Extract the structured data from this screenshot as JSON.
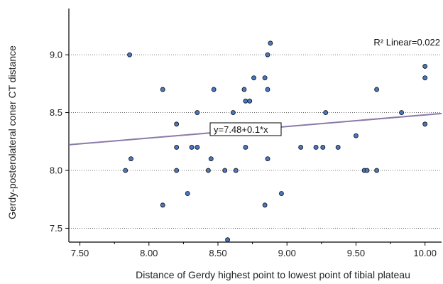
{
  "chart_data": {
    "type": "scatter",
    "xlabel": "Distance of Gerdy highest point to lowest point of tibial plateau",
    "ylabel": "Gerdy-posterolateral coner CT distance",
    "xlim": [
      7.42,
      10.12
    ],
    "ylim": [
      7.38,
      9.4
    ],
    "x_ticks": [
      7.5,
      7.75,
      8.0,
      8.25,
      8.5,
      8.75,
      9.0,
      9.25,
      9.5,
      9.75,
      10.0
    ],
    "x_tick_labels": [
      "7.50",
      "",
      "8.00",
      "",
      "8.50",
      "",
      "9.00",
      "",
      "9.50",
      "",
      "10.00"
    ],
    "y_ticks": [
      7.5,
      8.0,
      8.5,
      9.0
    ],
    "y_tick_labels": [
      "7.5",
      "8.0",
      "8.5",
      "9.0"
    ],
    "grid": "horizontal-dotted",
    "point_color": "#4a78c2",
    "line_color": "#8a7aa8",
    "fit_line": {
      "intercept": 7.48,
      "slope": 0.1
    },
    "equation_label": "y=7.48+0.1*x",
    "r2_label": "R² Linear=0.022",
    "points": [
      {
        "x": 7.83,
        "y": 8.0
      },
      {
        "x": 7.86,
        "y": 9.0
      },
      {
        "x": 7.87,
        "y": 8.1
      },
      {
        "x": 8.1,
        "y": 8.7
      },
      {
        "x": 8.1,
        "y": 7.7
      },
      {
        "x": 8.2,
        "y": 8.4
      },
      {
        "x": 8.2,
        "y": 8.2
      },
      {
        "x": 8.2,
        "y": 8.0
      },
      {
        "x": 8.28,
        "y": 7.8
      },
      {
        "x": 8.31,
        "y": 8.2
      },
      {
        "x": 8.35,
        "y": 8.5
      },
      {
        "x": 8.35,
        "y": 8.2
      },
      {
        "x": 8.43,
        "y": 8.0
      },
      {
        "x": 8.45,
        "y": 8.1
      },
      {
        "x": 8.47,
        "y": 8.7
      },
      {
        "x": 8.55,
        "y": 8.0
      },
      {
        "x": 8.57,
        "y": 7.4
      },
      {
        "x": 8.61,
        "y": 8.5
      },
      {
        "x": 8.63,
        "y": 8.0
      },
      {
        "x": 8.69,
        "y": 8.7
      },
      {
        "x": 8.7,
        "y": 8.6
      },
      {
        "x": 8.7,
        "y": 8.2
      },
      {
        "x": 8.73,
        "y": 8.6
      },
      {
        "x": 8.76,
        "y": 8.8
      },
      {
        "x": 8.84,
        "y": 8.8
      },
      {
        "x": 8.84,
        "y": 7.7
      },
      {
        "x": 8.86,
        "y": 9.0
      },
      {
        "x": 8.86,
        "y": 8.7
      },
      {
        "x": 8.86,
        "y": 8.1
      },
      {
        "x": 8.88,
        "y": 9.1
      },
      {
        "x": 8.96,
        "y": 7.8
      },
      {
        "x": 9.1,
        "y": 8.2
      },
      {
        "x": 9.21,
        "y": 8.2
      },
      {
        "x": 9.26,
        "y": 8.2
      },
      {
        "x": 9.28,
        "y": 8.5
      },
      {
        "x": 9.37,
        "y": 8.2
      },
      {
        "x": 9.5,
        "y": 8.3
      },
      {
        "x": 9.56,
        "y": 8.0
      },
      {
        "x": 9.58,
        "y": 8.0
      },
      {
        "x": 9.65,
        "y": 8.7
      },
      {
        "x": 9.65,
        "y": 8.0
      },
      {
        "x": 9.83,
        "y": 8.5
      },
      {
        "x": 10.0,
        "y": 8.9
      },
      {
        "x": 10.0,
        "y": 8.8
      },
      {
        "x": 10.0,
        "y": 8.4
      }
    ]
  }
}
